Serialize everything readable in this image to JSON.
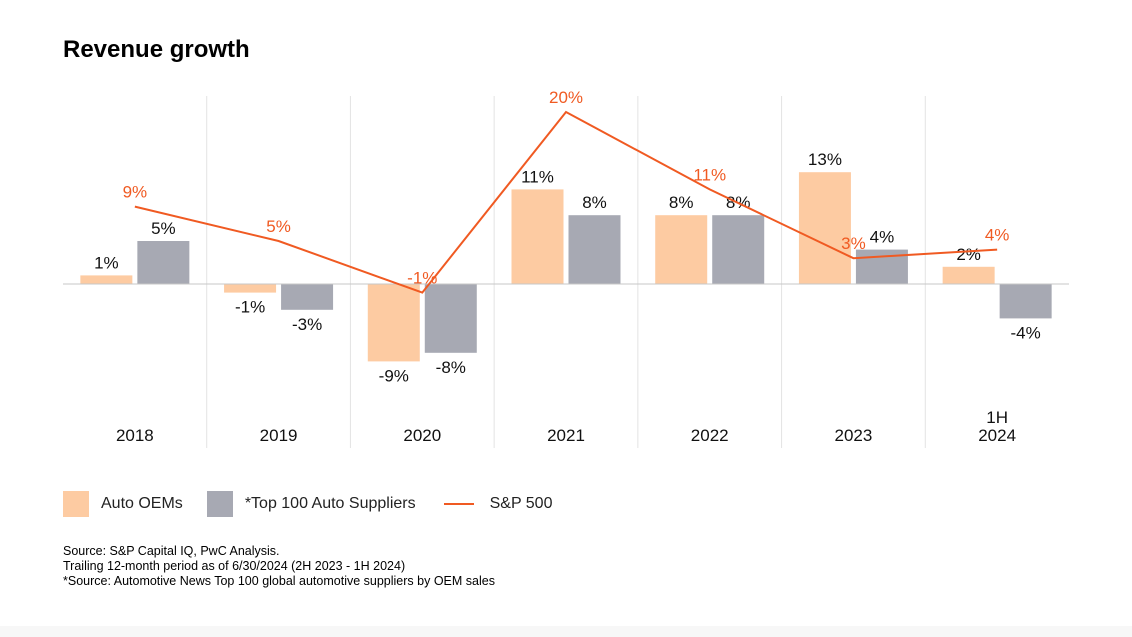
{
  "title": "Revenue growth",
  "chart_data": {
    "type": "bar",
    "categories": [
      [
        "2018"
      ],
      [
        "2019"
      ],
      [
        "2020"
      ],
      [
        "2021"
      ],
      [
        "2022"
      ],
      [
        "2023"
      ],
      [
        "1H",
        "2024"
      ]
    ],
    "series": [
      {
        "name": "Auto OEMs",
        "type": "bar",
        "color": "#fdcba2",
        "values": [
          1,
          -1,
          -9,
          11,
          8,
          13,
          2
        ],
        "labels": [
          "1%",
          "-1%",
          "-9%",
          "11%",
          "8%",
          "13%",
          "2%"
        ]
      },
      {
        "name": "*Top 100 Auto Suppliers",
        "type": "bar",
        "color": "#a7a9b3",
        "values": [
          5,
          -3,
          -8,
          8,
          8,
          4,
          -4
        ],
        "labels": [
          "5%",
          "-3%",
          "-8%",
          "8%",
          "8%",
          "4%",
          "-4%"
        ]
      },
      {
        "name": "S&P 500",
        "type": "line",
        "color": "#f05a22",
        "values": [
          9,
          5,
          -1,
          20,
          11,
          3,
          4
        ],
        "labels": [
          "9%",
          "5%",
          "-1%",
          "20%",
          "11%",
          "3%",
          "4%"
        ]
      }
    ],
    "ylim": [
      -13,
      22
    ],
    "grid": "vertical separators",
    "legend": "bottom"
  },
  "legend": [
    {
      "label": "Auto OEMs",
      "kind": "box",
      "color": "#fdcba2"
    },
    {
      "label": "*Top 100 Auto Suppliers",
      "kind": "box",
      "color": "#a7a9b3"
    },
    {
      "label": "S&P 500",
      "kind": "line",
      "color": "#f05a22"
    }
  ],
  "source_lines": [
    "Source: S&P Capital IQ, PwC Analysis.",
    "Trailing 12-month period as of 6/30/2024 (2H 2023 - 1H 2024)",
    "*Source: Automotive News Top 100 global automotive suppliers by OEM sales"
  ]
}
